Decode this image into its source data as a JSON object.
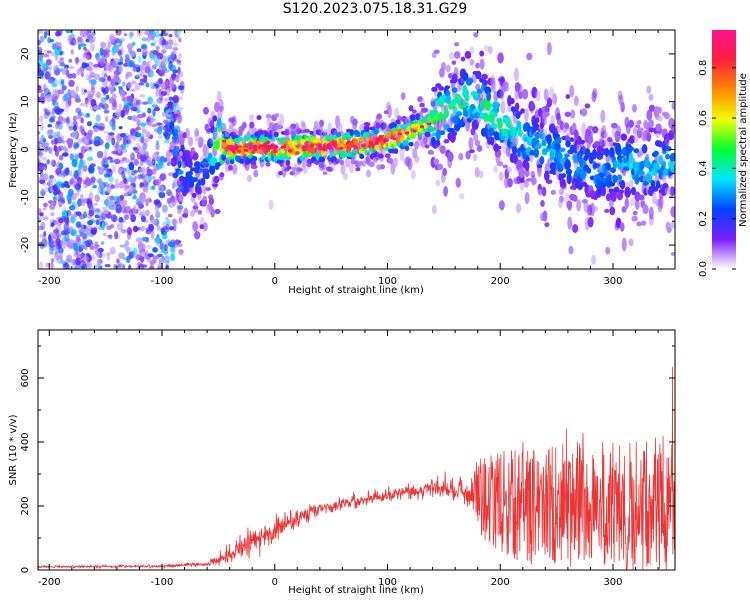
{
  "title": "S120.2023.075.18.31.G29",
  "colorbar": {
    "label": "Normalized spectral amplitude",
    "ticks": [
      "0.0",
      "0.2",
      "0.4",
      "0.6",
      "0.8"
    ],
    "tick_values": [
      0.0,
      0.2,
      0.4,
      0.6,
      0.8
    ],
    "range": [
      0,
      0.95
    ],
    "gradient": [
      "#ffffff",
      "#7a1cff",
      "#0044ff",
      "#00e5ff",
      "#00ff30",
      "#f2ff00",
      "#ff8a00",
      "#ff1e3a",
      "#ff1090"
    ]
  },
  "chart_data": [
    {
      "type": "heatmap",
      "xlabel": "Height of straight line (km)",
      "ylabel": "Frequency (Hz)",
      "xlim": [
        -210,
        355
      ],
      "ylim": [
        -25,
        25
      ],
      "x_ticks": [
        -200,
        -100,
        0,
        100,
        200,
        300
      ],
      "y_ticks": [
        -20,
        -10,
        0,
        10,
        20
      ],
      "x_tick_labels": [
        "-200",
        "-100",
        "0",
        "100",
        "200",
        "300"
      ],
      "y_tick_labels": [
        "-20",
        "-10",
        "0",
        "10",
        "20"
      ],
      "noise_region_x": [
        -210,
        -95
      ],
      "ridge": {
        "x": [
          -100,
          -90,
          -80,
          -70,
          -60,
          -50,
          -40,
          -20,
          0,
          20,
          40,
          60,
          80,
          100,
          120,
          140,
          160,
          175,
          190,
          210,
          230,
          250,
          270,
          290,
          310,
          330,
          350
        ],
        "freq": [
          9,
          4,
          -5,
          -6,
          -3,
          2,
          0,
          0.5,
          0.3,
          0.5,
          0.6,
          0.8,
          1.2,
          2,
          3.5,
          6,
          9,
          11,
          8,
          4,
          1,
          -1,
          -3,
          -5,
          -3,
          -4,
          -3
        ],
        "amplitude": [
          0.35,
          0.3,
          0.25,
          0.25,
          0.3,
          0.55,
          0.85,
          0.9,
          0.88,
          0.85,
          0.85,
          0.85,
          0.85,
          0.85,
          0.75,
          0.5,
          0.45,
          0.45,
          0.45,
          0.4,
          0.35,
          0.35,
          0.3,
          0.3,
          0.35,
          0.35,
          0.35
        ]
      }
    },
    {
      "type": "line",
      "xlabel": "Height of straight line (km)",
      "ylabel": "SNR (10 * v/v)",
      "xlim": [
        -210,
        355
      ],
      "ylim": [
        0,
        750
      ],
      "x_ticks": [
        -200,
        -100,
        0,
        100,
        200,
        300
      ],
      "y_ticks": [
        0,
        200,
        400,
        600
      ],
      "x_tick_labels": [
        "-200",
        "-100",
        "0",
        "100",
        "200",
        "300"
      ],
      "y_tick_labels": [
        "0",
        "200",
        "400",
        "600"
      ],
      "color": "#ee3333",
      "envelope": {
        "x": [
          -210,
          -100,
          -60,
          -40,
          -20,
          0,
          20,
          40,
          60,
          80,
          100,
          120,
          140,
          160,
          175,
          180,
          200,
          220,
          240,
          260,
          280,
          300,
          320,
          340,
          355
        ],
        "mean": [
          10,
          12,
          18,
          50,
          90,
          120,
          160,
          190,
          210,
          220,
          235,
          245,
          255,
          250,
          240,
          230,
          210,
          200,
          200,
          200,
          205,
          200,
          200,
          205,
          200
        ],
        "spread": [
          5,
          6,
          10,
          40,
          60,
          50,
          40,
          30,
          30,
          30,
          30,
          35,
          40,
          50,
          70,
          130,
          180,
          200,
          210,
          220,
          220,
          230,
          240,
          240,
          240
        ]
      }
    }
  ]
}
